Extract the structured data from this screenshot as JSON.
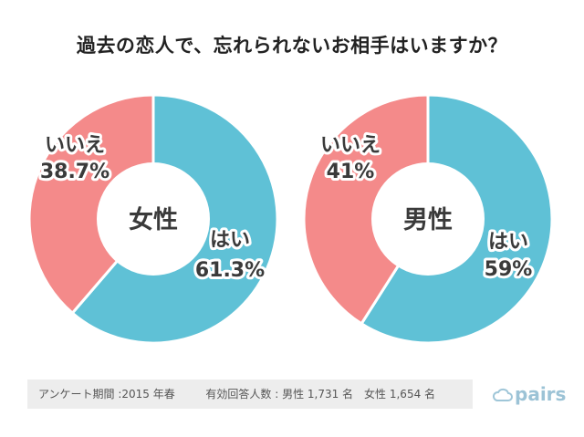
{
  "title": "過去の恋人で、忘れられないお相手はいますか？",
  "colors": {
    "yes": "#5fc1d6",
    "no": "#f48a8a",
    "center": "#ffffff",
    "label_outline": "#ffffff",
    "text_dark": "#3a3a3a"
  },
  "chart_data": [
    {
      "type": "pie",
      "title": "女性",
      "categories": [
        "はい",
        "いいえ"
      ],
      "values": [
        61.3,
        38.7
      ],
      "labels": [
        {
          "name": "はい",
          "value": "61.3%"
        },
        {
          "name": "いいえ",
          "value": "38.7%"
        }
      ]
    },
    {
      "type": "pie",
      "title": "男性",
      "categories": [
        "はい",
        "いいえ"
      ],
      "values": [
        59,
        41
      ],
      "labels": [
        {
          "name": "はい",
          "value": "59%"
        },
        {
          "name": "いいえ",
          "value": "41%"
        }
      ]
    }
  ],
  "footer": {
    "period": "アンケート期間 :2015 年春",
    "respondents": "有効回答人数 : 男性 1,731 名　女性 1,654 名"
  },
  "logo": {
    "text": "pairs",
    "icon": "cloud-icon"
  }
}
